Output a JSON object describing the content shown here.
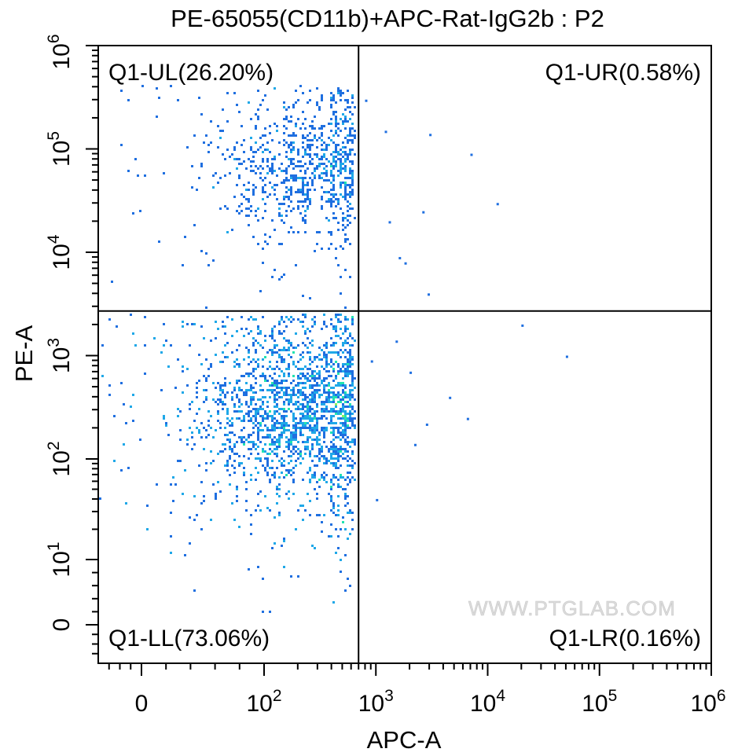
{
  "chart_data": {
    "type": "scatter",
    "title": "PE-65055(CD11b)+APC-Rat-IgG2b : P2",
    "xlabel": "APC-A",
    "ylabel": "PE-A",
    "x_scale": "biexponential",
    "y_scale": "biexponential",
    "xlim": [
      -400,
      1000000
    ],
    "ylim": [
      -400,
      1000000
    ],
    "x_ticks": [
      {
        "value": 0,
        "base": "0",
        "exp": ""
      },
      {
        "value": 100,
        "base": "10",
        "exp": "2"
      },
      {
        "value": 1000,
        "base": "10",
        "exp": "3"
      },
      {
        "value": 10000,
        "base": "10",
        "exp": "4"
      },
      {
        "value": 100000,
        "base": "10",
        "exp": "5"
      },
      {
        "value": 1000000,
        "base": "10",
        "exp": "6"
      }
    ],
    "y_ticks": [
      {
        "value": 0,
        "base": "0",
        "exp": ""
      },
      {
        "value": 10,
        "base": "10",
        "exp": "1"
      },
      {
        "value": 100,
        "base": "10",
        "exp": "2"
      },
      {
        "value": 1000,
        "base": "10",
        "exp": "3"
      },
      {
        "value": 10000,
        "base": "10",
        "exp": "4"
      },
      {
        "value": 100000,
        "base": "10",
        "exp": "5"
      },
      {
        "value": 1000000,
        "base": "10",
        "exp": "6"
      }
    ],
    "gate": {
      "x": 700,
      "y": 2700
    },
    "quadrants": [
      {
        "label": "Q1-UL(26.20%)",
        "percent": 26.2
      },
      {
        "label": "Q1-UR(0.58%)",
        "percent": 0.58
      },
      {
        "label": "Q1-LL(73.06%)",
        "percent": 73.06
      },
      {
        "label": "Q1-LR(0.16%)",
        "percent": 0.16
      }
    ],
    "populations": [
      {
        "name": "Q1-LL cluster",
        "x_center": 200,
        "y_center": 300,
        "count": 2600
      },
      {
        "name": "Q1-UL cluster",
        "x_center": 200,
        "y_center": 70000,
        "count": 900
      }
    ],
    "outliers": [
      {
        "x": 800,
        "y": 300000
      },
      {
        "x": 1200,
        "y": 150000
      },
      {
        "x": 3000,
        "y": 140000
      },
      {
        "x": 7000,
        "y": 90000
      },
      {
        "x": 12000,
        "y": 30000
      },
      {
        "x": 1300,
        "y": 20000
      },
      {
        "x": 2600,
        "y": 25000
      },
      {
        "x": 1600,
        "y": 9000
      },
      {
        "x": 2900,
        "y": 4000
      },
      {
        "x": 20000,
        "y": 2000
      },
      {
        "x": 1500,
        "y": 1400
      },
      {
        "x": 50000,
        "y": 1000
      },
      {
        "x": 2000,
        "y": 700
      },
      {
        "x": 4500,
        "y": 400
      },
      {
        "x": 6500,
        "y": 250
      },
      {
        "x": 2800,
        "y": 220
      },
      {
        "x": 2200,
        "y": 140
      },
      {
        "x": 1000,
        "y": 40
      },
      {
        "x": 900,
        "y": 900
      },
      {
        "x": 1800,
        "y": 8000
      }
    ],
    "colors": {
      "low": "#1f6fe0",
      "mid": "#1fa8e8",
      "high": "#22e3b0",
      "peak": "#8af060",
      "gate_line": "#000000",
      "watermark": "#d8d8d8"
    },
    "watermark": "WWW.PTGLAB.COM"
  }
}
